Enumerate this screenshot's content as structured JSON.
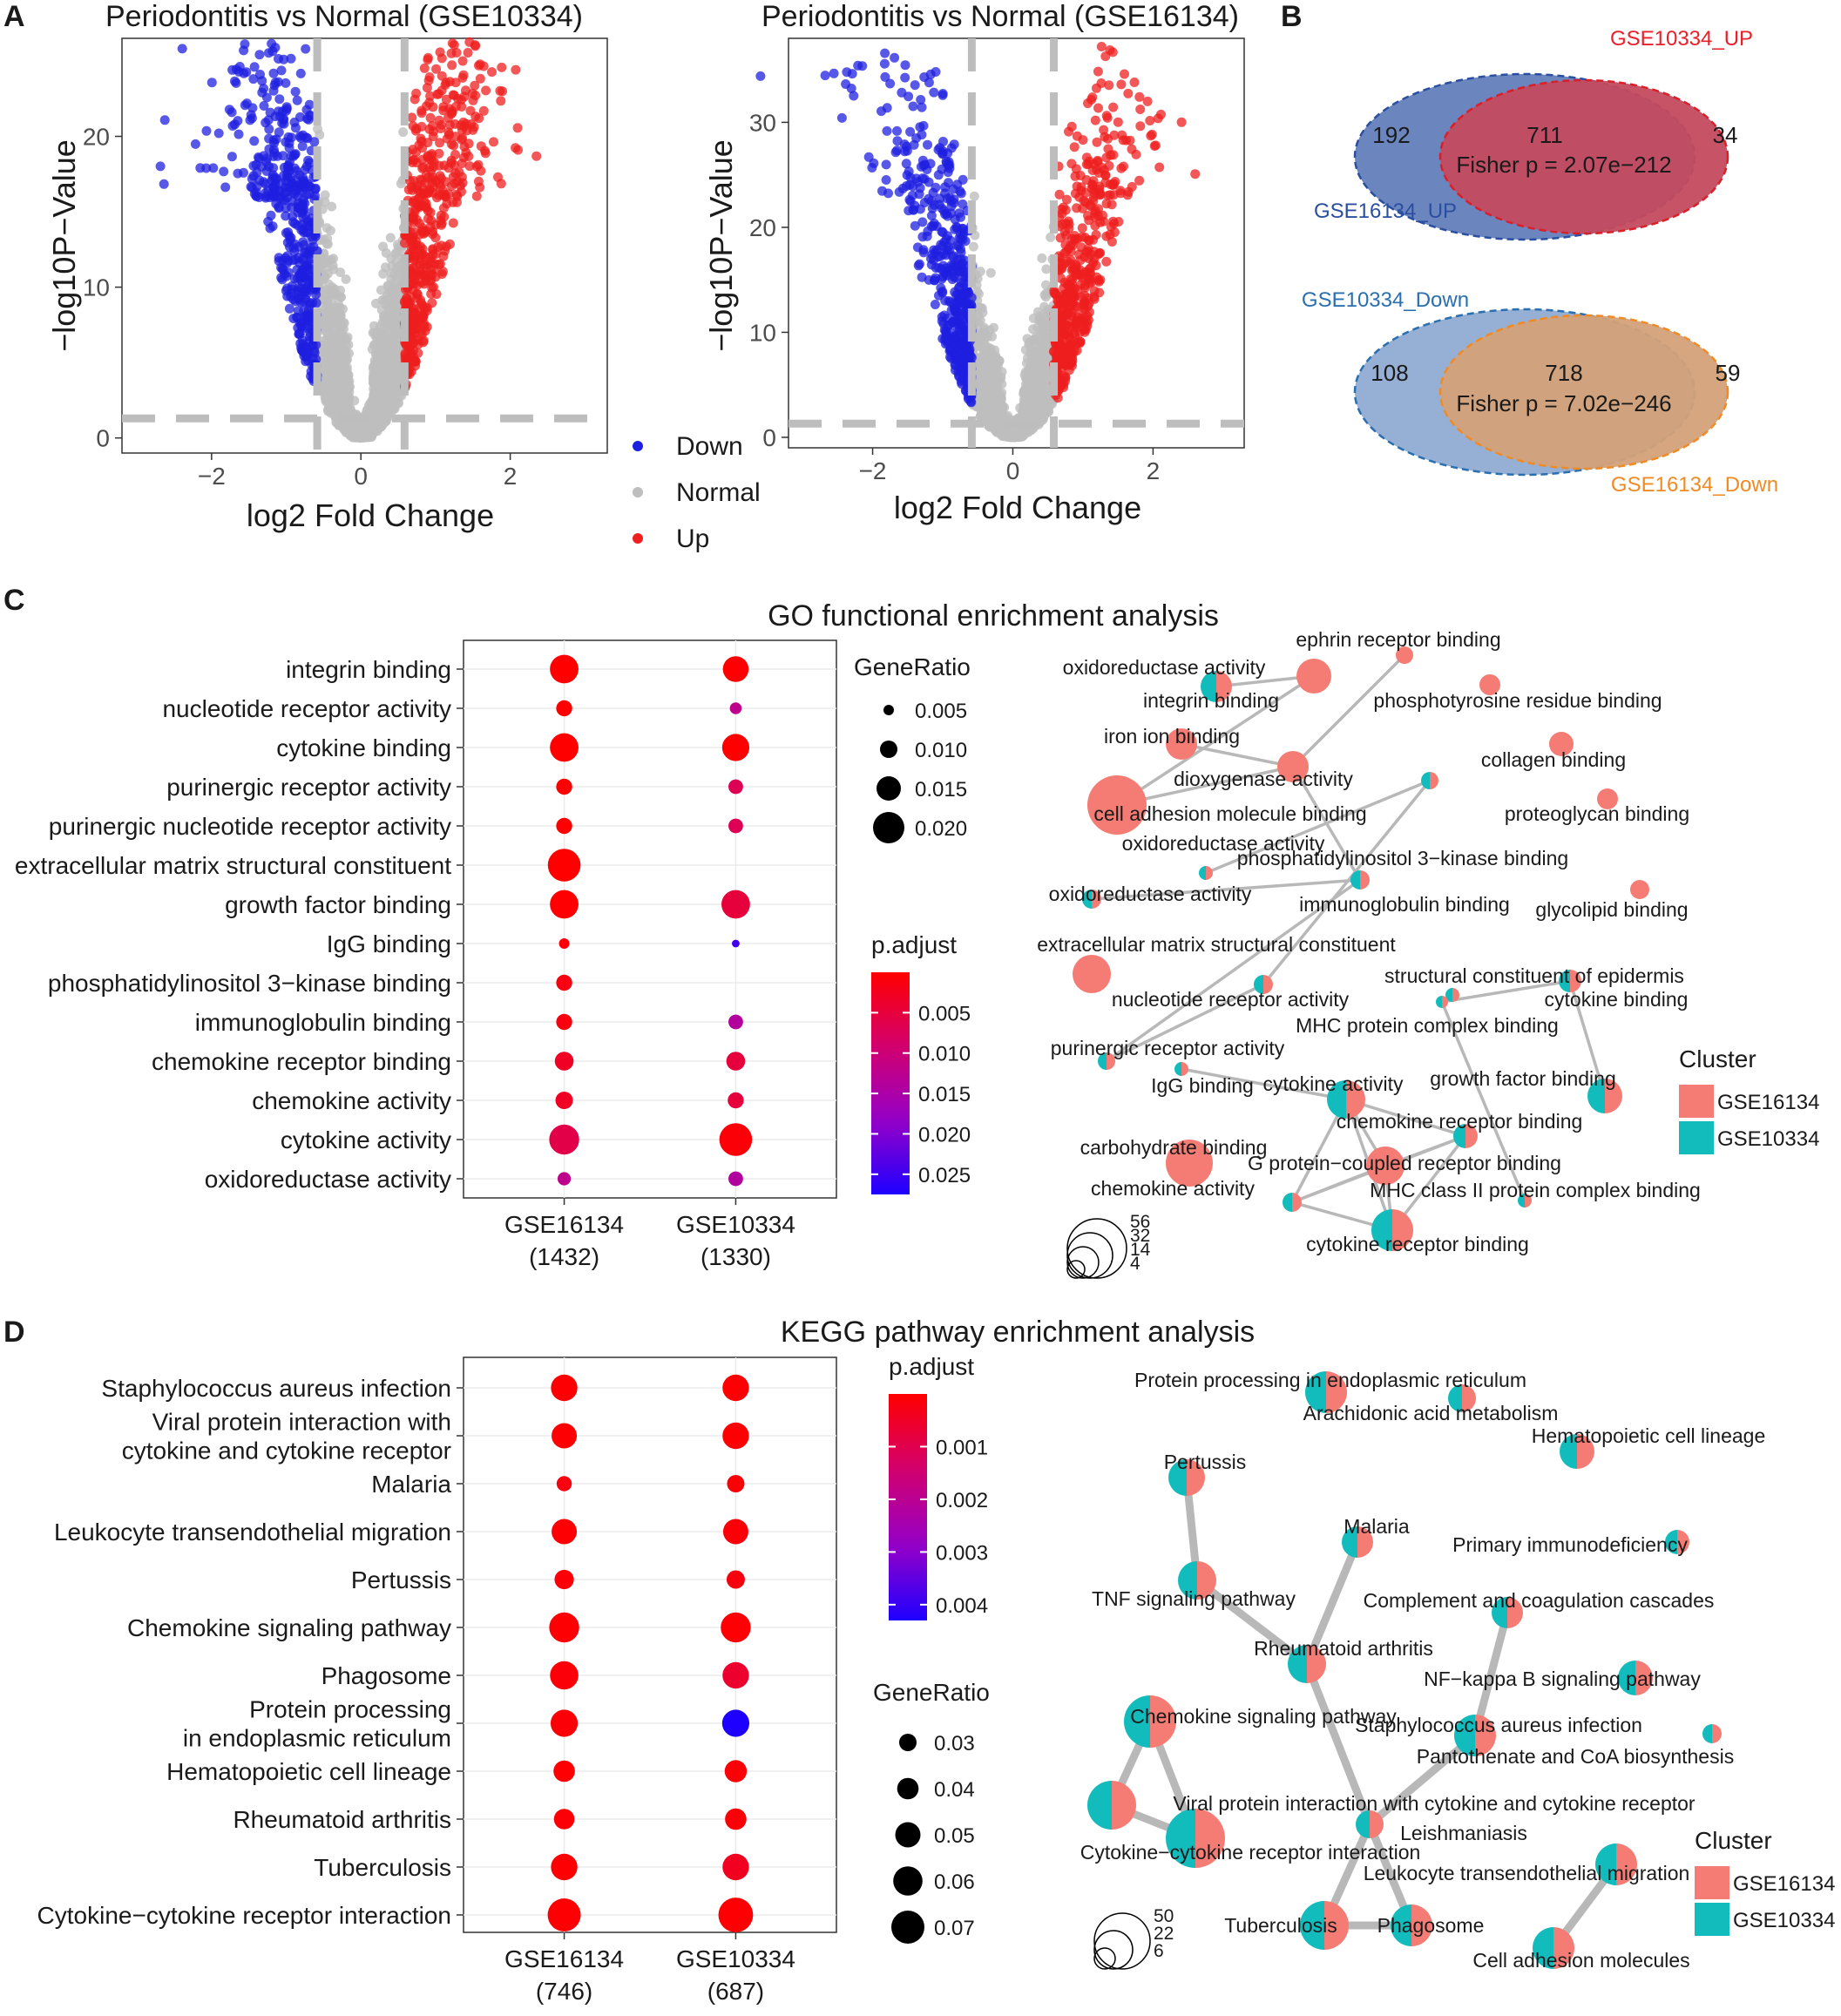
{
  "panel_letters": [
    "A",
    "B",
    "C",
    "D"
  ],
  "chart_data": [
    {
      "type": "scatter",
      "id": "volcano1",
      "title": "Periodontitis vs Normal (GSE10334)",
      "xlabel": "log2 Fold Change",
      "ylabel": "−log10P−Value",
      "xlim": [
        -3.2,
        3.3
      ],
      "ylim": [
        -1,
        26.5
      ],
      "xticks": [
        {
          "v": -2,
          "label": "−2"
        },
        {
          "v": 0,
          "label": "0"
        },
        {
          "v": 2,
          "label": "2"
        }
      ],
      "yticks": [
        {
          "v": 0,
          "label": "0"
        },
        {
          "v": 10,
          "label": "10"
        },
        {
          "v": 20,
          "label": "20"
        }
      ],
      "fc_cut": 0.585,
      "p_cut": 1.3,
      "ymax_points": 26.5,
      "colors": {
        "Down": "#1f1fe0",
        "Normal": "#bebebe",
        "Up": "#ef1f1f"
      }
    },
    {
      "type": "scatter",
      "id": "volcano2",
      "title": "Periodontitis vs Normal (GSE16134)",
      "xlabel": "log2 Fold Change",
      "ylabel": "−log10P−Value",
      "xlim": [
        -3.2,
        3.3
      ],
      "ylim": [
        -1,
        38
      ],
      "xticks": [
        {
          "v": -2,
          "label": "−2"
        },
        {
          "v": 0,
          "label": "0"
        },
        {
          "v": 2,
          "label": "2"
        }
      ],
      "yticks": [
        {
          "v": 0,
          "label": "0"
        },
        {
          "v": 10,
          "label": "10"
        },
        {
          "v": 20,
          "label": "20"
        },
        {
          "v": 30,
          "label": "30"
        }
      ],
      "fc_cut": 0.585,
      "p_cut": 1.3,
      "ymax_points": 37.5,
      "colors": {
        "Down": "#1f1fe0",
        "Normal": "#bebebe",
        "Up": "#ef1f1f"
      }
    },
    {
      "type": "venn",
      "id": "venn",
      "sets": [
        {
          "top_label": "GSE10334_UP",
          "bottom_label": "GSE16134_UP",
          "left": "192",
          "center": "711",
          "right": "34",
          "fisher": "Fisher p = 2.07e−212",
          "top_color": "#e8202a",
          "bottom_color": "#2b4fa0"
        },
        {
          "top_label": "GSE10334_Down",
          "bottom_label": "GSE16134_Down",
          "left": "108",
          "center": "718",
          "right": "59",
          "fisher": "Fisher p = 7.02e−246",
          "top_color": "#2a6fb0",
          "bottom_color": "#f08a24"
        }
      ]
    },
    {
      "type": "dotplot",
      "id": "go_dot",
      "title": "GO functional enrichment analysis",
      "categories": [
        "integrin binding",
        "nucleotide receptor activity",
        "cytokine binding",
        "purinergic receptor activity",
        "purinergic nucleotide receptor activity",
        "extracellular matrix structural constituent",
        "growth factor binding",
        "IgG binding",
        "phosphatidylinositol 3−kinase binding",
        "immunoglobulin binding",
        "chemokine receptor binding",
        "chemokine activity",
        "cytokine activity",
        "oxidoreductase activity"
      ],
      "columns": [
        {
          "name": "GSE16134",
          "count": "(1432)"
        },
        {
          "name": "GSE10334",
          "count": "(1330)"
        }
      ],
      "gene_ratio": [
        [
          0.018,
          0.016
        ],
        [
          0.009,
          0.006
        ],
        [
          0.018,
          0.017
        ],
        [
          0.009,
          0.008
        ],
        [
          0.009,
          0.008
        ],
        [
          0.021,
          null
        ],
        [
          0.018,
          0.018
        ],
        [
          0.005,
          0.003
        ],
        [
          0.009,
          null
        ],
        [
          0.009,
          0.008
        ],
        [
          0.011,
          0.011
        ],
        [
          0.01,
          0.009
        ],
        [
          0.019,
          0.021
        ],
        [
          0.007,
          0.008
        ]
      ],
      "p_adjust": [
        [
          0.0001,
          0.0002
        ],
        [
          0.0002,
          0.012
        ],
        [
          0.0001,
          0.0001
        ],
        [
          0.0002,
          0.007
        ],
        [
          0.0002,
          0.007
        ],
        [
          0.0001,
          null
        ],
        [
          0.0002,
          0.005
        ],
        [
          0.0005,
          0.025
        ],
        [
          0.0015,
          null
        ],
        [
          0.0012,
          0.014
        ],
        [
          0.003,
          0.005
        ],
        [
          0.003,
          0.005
        ],
        [
          0.006,
          0.0007
        ],
        [
          0.012,
          0.014
        ]
      ],
      "size_legend": {
        "title": "GeneRatio",
        "values": [
          0.005,
          0.01,
          0.015,
          0.02
        ],
        "labels": [
          "0.005",
          "0.010",
          "0.015",
          "0.020"
        ]
      },
      "color_legend": {
        "title": "p.adjust",
        "range": [
          0.0,
          0.0275
        ],
        "ticks": [
          {
            "v": 0.005,
            "label": "0.005"
          },
          {
            "v": 0.01,
            "label": "0.010"
          },
          {
            "v": 0.015,
            "label": "0.015"
          },
          {
            "v": 0.02,
            "label": "0.020"
          },
          {
            "v": 0.025,
            "label": "0.025"
          }
        ]
      }
    },
    {
      "type": "network",
      "id": "go_net",
      "cluster_title": "Cluster",
      "clusters": [
        {
          "name": "GSE16134",
          "color": "#f47c74"
        },
        {
          "name": "GSE10334",
          "color": "#12bcbd"
        }
      ],
      "size_legend": [
        "56",
        "32",
        "14",
        "4"
      ]
    },
    {
      "type": "dotplot",
      "id": "kegg_dot",
      "title": "KEGG pathway enrichment analysis",
      "categories": [
        [
          "Staphylococcus aureus infection"
        ],
        [
          "Viral protein interaction with",
          "cytokine and cytokine receptor"
        ],
        [
          "Malaria"
        ],
        [
          "Leukocyte transendothelial migration"
        ],
        [
          "Pertussis"
        ],
        [
          "Chemokine signaling pathway"
        ],
        [
          "Phagosome"
        ],
        [
          "Protein processing",
          "in endoplasmic reticulum"
        ],
        [
          "Hematopoietic cell lineage"
        ],
        [
          "Rheumatoid arthritis"
        ],
        [
          "Tuberculosis"
        ],
        [
          "Cytokine−cytokine receptor interaction"
        ]
      ],
      "columns": [
        {
          "name": "GSE16134",
          "count": "(746)"
        },
        {
          "name": "GSE10334",
          "count": "(687)"
        }
      ],
      "gene_ratio": [
        [
          0.053,
          0.053
        ],
        [
          0.05,
          0.053
        ],
        [
          0.024,
          0.03
        ],
        [
          0.05,
          0.05
        ],
        [
          0.035,
          0.032
        ],
        [
          0.062,
          0.062
        ],
        [
          0.058,
          0.053
        ],
        [
          0.055,
          0.055
        ],
        [
          0.04,
          0.042
        ],
        [
          0.038,
          0.04
        ],
        [
          0.053,
          0.053
        ],
        [
          0.07,
          0.074
        ]
      ],
      "p_adjust": [
        [
          5e-05,
          5e-05
        ],
        [
          5e-05,
          5e-05
        ],
        [
          0.0002,
          0.0001
        ],
        [
          5e-05,
          0.0001
        ],
        [
          0.0001,
          0.0002
        ],
        [
          5e-05,
          5e-05
        ],
        [
          0.0001,
          0.0006
        ],
        [
          0.0001,
          0.0045
        ],
        [
          5e-05,
          0.0001
        ],
        [
          0.0001,
          0.0001
        ],
        [
          5e-05,
          0.0004
        ],
        [
          5e-05,
          5e-05
        ]
      ],
      "color_legend": {
        "title": "p.adjust",
        "range": [
          0.0,
          0.0043
        ],
        "ticks": [
          {
            "v": 0.001,
            "label": "0.001"
          },
          {
            "v": 0.002,
            "label": "0.002"
          },
          {
            "v": 0.003,
            "label": "0.003"
          },
          {
            "v": 0.004,
            "label": "0.004"
          }
        ]
      },
      "size_legend": {
        "title": "GeneRatio",
        "values": [
          0.03,
          0.04,
          0.05,
          0.06,
          0.07
        ],
        "labels": [
          "0.03",
          "0.04",
          "0.05",
          "0.06",
          "0.07"
        ]
      }
    },
    {
      "type": "network",
      "id": "kegg_net",
      "cluster_title": "Cluster",
      "clusters": [
        {
          "name": "GSE16134",
          "color": "#f47c74"
        },
        {
          "name": "GSE10334",
          "color": "#12bcbd"
        }
      ],
      "size_legend": [
        "50",
        "22",
        "6"
      ]
    }
  ],
  "volcano_legend": {
    "items": [
      {
        "label": "Down",
        "color": "#1f1fe0"
      },
      {
        "label": "Normal",
        "color": "#bebebe"
      },
      {
        "label": "Up",
        "color": "#ef1f1f"
      }
    ]
  },
  "go_network": {
    "nodes": [
      {
        "id": "eph",
        "label": "ephrin receptor binding",
        "c": "p",
        "r": 10
      },
      {
        "id": "oxr1",
        "label": "oxidoreductase activity",
        "c": "m",
        "r": 18
      },
      {
        "id": "intb",
        "label": "integrin binding",
        "c": "p",
        "r": 20
      },
      {
        "id": "phty",
        "label": "phosphotyrosine residue binding",
        "c": "p",
        "r": 12
      },
      {
        "id": "iron",
        "label": "iron ion binding",
        "c": "p",
        "r": 18
      },
      {
        "id": "coll",
        "label": "collagen binding",
        "c": "p",
        "r": 14
      },
      {
        "id": "diox",
        "label": "dioxygenase activity",
        "c": "p",
        "r": 18
      },
      {
        "id": "cam",
        "label": "cell adhesion molecule binding",
        "c": "p",
        "r": 34
      },
      {
        "id": "prot",
        "label": "proteoglycan binding",
        "c": "p",
        "r": 12
      },
      {
        "id": "oxr2",
        "label": "oxidoreductase activity",
        "c": "m",
        "r": 8
      },
      {
        "id": "pi3k",
        "label": "phosphatidylinositol 3−kinase binding",
        "c": "m",
        "r": 10
      },
      {
        "id": "glyc",
        "label": "glycolipid binding",
        "c": "p",
        "r": 11
      },
      {
        "id": "oxr3",
        "label": "oxidoreductase activity",
        "c": "m",
        "r": 11
      },
      {
        "id": "immb",
        "label": "immunoglobulin binding",
        "c": "m",
        "r": 11
      },
      {
        "id": "ecm",
        "label": "extracellular matrix structural constituent",
        "c": "p",
        "r": 22
      },
      {
        "id": "sce",
        "label": "structural constituent of epidermis",
        "c": "m",
        "r": 8
      },
      {
        "id": "nra",
        "label": "nucleotide receptor activity",
        "c": "m",
        "r": 11
      },
      {
        "id": "cytb",
        "label": "cytokine binding",
        "c": "m",
        "r": 13
      },
      {
        "id": "mhc",
        "label": "MHC protein complex binding",
        "c": "m",
        "r": 7
      },
      {
        "id": "pra",
        "label": "purinergic receptor activity",
        "c": "m",
        "r": 10
      },
      {
        "id": "igg",
        "label": "IgG binding",
        "c": "m",
        "r": 8
      },
      {
        "id": "cyta",
        "label": "cytokine activity",
        "c": "m",
        "r": 22
      },
      {
        "id": "gfb",
        "label": "growth factor binding",
        "c": "m",
        "r": 20
      },
      {
        "id": "crb",
        "label": "chemokine receptor binding",
        "c": "m",
        "r": 14
      },
      {
        "id": "carb",
        "label": "carbohydrate binding",
        "c": "p",
        "r": 27
      },
      {
        "id": "gpcr",
        "label": "G protein−coupled receptor binding",
        "c": "p",
        "r": 22
      },
      {
        "id": "chema",
        "label": "chemokine activity",
        "c": "m",
        "r": 11
      },
      {
        "id": "mhc2",
        "label": "MHC class II protein complex binding",
        "c": "m",
        "r": 8
      },
      {
        "id": "cytrb",
        "label": "cytokine receptor binding",
        "c": "m",
        "r": 24
      }
    ],
    "edges": [
      [
        "oxr1",
        "intb"
      ],
      [
        "intb",
        "cam"
      ],
      [
        "iron",
        "diox"
      ],
      [
        "diox",
        "cam"
      ],
      [
        "diox",
        "eph"
      ],
      [
        "diox",
        "immb"
      ],
      [
        "pi3k",
        "oxr2"
      ],
      [
        "pi3k",
        "nra"
      ],
      [
        "immb",
        "oxr3"
      ],
      [
        "immb",
        "pra"
      ],
      [
        "nra",
        "pra"
      ],
      [
        "cytb",
        "mhc"
      ],
      [
        "cytb",
        "gfb"
      ],
      [
        "mhc",
        "mhc2"
      ],
      [
        "cyta",
        "crb"
      ],
      [
        "cyta",
        "chema"
      ],
      [
        "cyta",
        "gpcr"
      ],
      [
        "cyta",
        "igg"
      ],
      [
        "crb",
        "gpcr"
      ],
      [
        "crb",
        "chema"
      ],
      [
        "crb",
        "cytrb"
      ],
      [
        "gpcr",
        "chema"
      ],
      [
        "gpcr",
        "cytrb"
      ],
      [
        "chema",
        "cytrb"
      ],
      [
        "cyta",
        "cytrb"
      ]
    ]
  },
  "kegg_network": {
    "nodes": [
      {
        "id": "ppe",
        "label": "Protein processing in endoplasmic reticulum",
        "c": "m",
        "r": 24
      },
      {
        "id": "ara",
        "label": "Arachidonic acid metabolism",
        "c": "m",
        "r": 16
      },
      {
        "id": "hem",
        "label": "Hematopoietic cell lineage",
        "c": "m",
        "r": 20
      },
      {
        "id": "per",
        "label": "Pertussis",
        "c": "m",
        "r": 21
      },
      {
        "id": "mal",
        "label": "Malaria",
        "c": "m",
        "r": 18
      },
      {
        "id": "pid",
        "label": "Primary immunodeficiency",
        "c": "m",
        "r": 14
      },
      {
        "id": "tnf",
        "label": "TNF signaling pathway",
        "c": "m",
        "r": 22
      },
      {
        "id": "ccc",
        "label": "Complement and coagulation cascades",
        "c": "m",
        "r": 18
      },
      {
        "id": "ra",
        "label": "Rheumatoid arthritis",
        "c": "m",
        "r": 22
      },
      {
        "id": "nfk",
        "label": "NF−kappa B signaling pathway",
        "c": "m",
        "r": 20
      },
      {
        "id": "csp",
        "label": "Chemokine signaling pathway",
        "c": "m",
        "r": 30
      },
      {
        "id": "sai",
        "label": "Staphylococcus aureus infection",
        "c": "m",
        "r": 24
      },
      {
        "id": "pcoa",
        "label": "Pantothenate and CoA biosynthesis",
        "c": "m",
        "r": 11
      },
      {
        "id": "vpi",
        "label": "Viral protein interaction with cytokine and cytokine receptor",
        "c": "m",
        "r": 28
      },
      {
        "id": "lei",
        "label": "Leishmaniasis",
        "c": "m",
        "r": 16
      },
      {
        "id": "ccri",
        "label": "Cytokine−cytokine receptor interaction",
        "c": "m",
        "r": 34
      },
      {
        "id": "ltm",
        "label": "Leukocyte transendothelial migration",
        "c": "m",
        "r": 24
      },
      {
        "id": "tub",
        "label": "Tuberculosis",
        "c": "m",
        "r": 28
      },
      {
        "id": "pha",
        "label": "Phagosome",
        "c": "m",
        "r": 24
      },
      {
        "id": "cam",
        "label": "Cell adhesion molecules",
        "c": "m",
        "r": 24
      }
    ],
    "edges": [
      [
        "per",
        "tnf"
      ],
      [
        "tnf",
        "ra"
      ],
      [
        "mal",
        "ra"
      ],
      [
        "ra",
        "lei"
      ],
      [
        "ccc",
        "sai"
      ],
      [
        "sai",
        "lei"
      ],
      [
        "csp",
        "vpi"
      ],
      [
        "csp",
        "ccri"
      ],
      [
        "vpi",
        "ccri"
      ],
      [
        "lei",
        "tub"
      ],
      [
        "lei",
        "pha"
      ],
      [
        "tub",
        "pha"
      ],
      [
        "ltm",
        "cam"
      ]
    ]
  }
}
